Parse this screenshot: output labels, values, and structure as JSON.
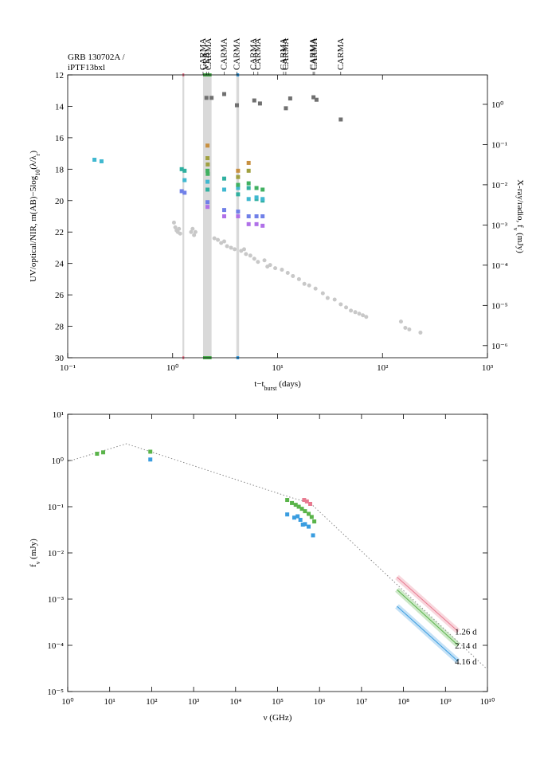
{
  "chart_data": [
    {
      "type": "scatter",
      "title": [
        "GRB 130702A /",
        "iPTF13bxl"
      ],
      "xlabel": [
        {
          "text": "t−t"
        },
        {
          "text": "burst",
          "sub": true
        },
        {
          "text": " (days)"
        }
      ],
      "ylabel": [
        {
          "text": "UV/optical/NIR, m(AB)−5log"
        },
        {
          "text": "10",
          "sub": true
        },
        {
          "text": "(λ/λ"
        },
        {
          "text": "r",
          "sub": true
        },
        {
          "text": ")"
        }
      ],
      "y2label": [
        {
          "text": "X-ray/radio, f"
        },
        {
          "text": "ν",
          "sub": true
        },
        {
          "text": " (mJy)"
        }
      ],
      "xscale": "log",
      "yscale": "linear",
      "y2scale": "log",
      "xlim": [
        0.1,
        1000
      ],
      "ylim": [
        30,
        12
      ],
      "y2lim": [
        5e-07,
        5.4
      ],
      "xticks": [
        {
          "value": 0.1,
          "label": "10⁻¹"
        },
        {
          "value": 1,
          "label": "10⁰"
        },
        {
          "value": 10,
          "label": "10¹"
        },
        {
          "value": 100,
          "label": "10²"
        },
        {
          "value": 1000,
          "label": "10³"
        }
      ],
      "yticks": [
        12,
        14,
        16,
        18,
        20,
        22,
        24,
        26,
        28,
        30
      ],
      "y2ticks": [
        {
          "value": 1e-06,
          "label": "10⁻⁶"
        },
        {
          "value": 1e-05,
          "label": "10⁻⁵"
        },
        {
          "value": 0.0001,
          "label": "10⁻⁴"
        },
        {
          "value": 0.001,
          "label": "10⁻³"
        },
        {
          "value": 0.01,
          "label": "10⁻²"
        },
        {
          "value": 0.1,
          "label": "10⁻¹"
        },
        {
          "value": 1,
          "label": "10⁰"
        }
      ],
      "bands": [
        {
          "x": [
            1.24,
            1.29
          ],
          "color": "#e87a90"
        },
        {
          "x": [
            1.95,
            2.35
          ],
          "color": "#4caf50"
        },
        {
          "x": [
            4.05,
            4.3
          ],
          "color": "#3a9de0"
        }
      ],
      "annotations": [
        {
          "text": "CARMA",
          "x": 1.95
        },
        {
          "text": "VLA",
          "x": 2.1
        },
        {
          "text": "CARMA",
          "x": 2.2
        },
        {
          "text": "CARMA",
          "x": 3.1
        },
        {
          "text": "CARMA",
          "x": 4.1
        },
        {
          "text": "CARMA",
          "x": 5.9
        },
        {
          "text": "CARMA",
          "x": 6.5
        },
        {
          "text": "CARMA",
          "x": 11.4
        },
        {
          "text": "CARMA",
          "x": 12
        },
        {
          "text": "CARMA",
          "x": 21.8
        },
        {
          "text": "CARMA",
          "x": 22.5
        },
        {
          "text": "CARMA",
          "x": 40
        }
      ],
      "series": [
        {
          "color": "#c8c8c8",
          "marker": "circle",
          "x": [
            1.03,
            1.06,
            1.09,
            1.12,
            1.15,
            1.18,
            1.5,
            1.55,
            1.6,
            1.65,
            2.5,
            2.7,
            2.9,
            3.1,
            3.3,
            3.6,
            3.9,
            4.5,
            4.8,
            5.0,
            5.5,
            6.0,
            6.5,
            7.5,
            8.0,
            8.5,
            9.5,
            11,
            12.5,
            14,
            16,
            18,
            20,
            23,
            27,
            30,
            35,
            40,
            45,
            50,
            55,
            60,
            65,
            70,
            150,
            165,
            180,
            230
          ],
          "values": [
            21.4,
            21.7,
            21.9,
            22.0,
            21.8,
            22.1,
            22.0,
            21.8,
            22.2,
            22.0,
            22.4,
            22.5,
            22.7,
            22.6,
            22.9,
            23.0,
            23.1,
            23.2,
            23.1,
            23.4,
            23.5,
            23.7,
            23.9,
            23.8,
            24.2,
            24.1,
            24.3,
            24.4,
            24.6,
            24.8,
            25.0,
            25.3,
            25.4,
            25.6,
            25.9,
            26.2,
            26.3,
            26.6,
            26.8,
            27.0,
            27.1,
            27.2,
            27.3,
            27.4,
            27.7,
            28.1,
            28.2,
            28.4
          ]
        },
        {
          "color": "#30b0a0",
          "marker": "square",
          "x": [
            1.22,
            1.3,
            2.15,
            3.1,
            4.2,
            5.3,
            6.3,
            7.2
          ],
          "values": [
            18.0,
            18.1,
            19.3,
            18.6,
            19.6,
            19.2,
            19.9,
            20.0
          ]
        },
        {
          "color": "#40b8d0",
          "marker": "square",
          "x": [
            0.18,
            0.21,
            1.3,
            2.15,
            3.1,
            4.2,
            5.3,
            6.3,
            7.2
          ],
          "values": [
            17.4,
            17.5,
            18.7,
            18.8,
            19.3,
            19.2,
            19.9,
            19.8,
            19.9
          ]
        },
        {
          "color": "#40b060",
          "marker": "square",
          "x": [
            2.15,
            2.16,
            4.2,
            5.3,
            6.3,
            7.2
          ],
          "values": [
            18.1,
            18.3,
            19.0,
            18.9,
            19.2,
            19.3
          ]
        },
        {
          "color": "#a0a040",
          "marker": "square",
          "x": [
            2.15,
            2.16,
            4.2,
            5.3
          ],
          "values": [
            17.3,
            17.7,
            18.5,
            18.1
          ]
        },
        {
          "color": "#c89040",
          "marker": "square",
          "x": [
            2.15,
            4.2,
            5.3
          ],
          "values": [
            16.5,
            18.1,
            17.6
          ]
        },
        {
          "color": "#7080e8",
          "marker": "square",
          "x": [
            1.22,
            1.3,
            2.15,
            3.1,
            4.2,
            5.3,
            6.3,
            7.2
          ],
          "values": [
            19.4,
            19.5,
            20.1,
            20.6,
            20.7,
            21.0,
            21.0,
            21.0
          ]
        },
        {
          "color": "#b070e8",
          "marker": "square",
          "x": [
            2.15,
            3.1,
            4.2,
            5.3,
            6.3,
            7.2
          ],
          "values": [
            20.4,
            21.0,
            21.0,
            21.5,
            21.5,
            21.6
          ]
        },
        {
          "color": "#707070",
          "marker": "square",
          "axis": "y2",
          "x": [
            2.1,
            2.35,
            3.1,
            4.1,
            6.0,
            6.8,
            12,
            13.2,
            22,
            23.5,
            40
          ],
          "values": [
            1.45,
            1.45,
            1.8,
            0.95,
            1.25,
            1.05,
            0.8,
            1.4,
            1.5,
            1.3,
            0.42
          ]
        }
      ]
    },
    {
      "type": "scatter",
      "xlabel": [
        {
          "text": "ν (GHz)"
        }
      ],
      "ylabel": [
        {
          "text": "f"
        },
        {
          "text": "ν",
          "sub": true
        },
        {
          "text": " (mJy)"
        }
      ],
      "xscale": "log",
      "yscale": "log",
      "xlim": [
        1,
        10000000000
      ],
      "ylim": [
        1e-05,
        10
      ],
      "xticks": [
        {
          "value": 1,
          "label": "10⁰"
        },
        {
          "value": 10,
          "label": "10¹"
        },
        {
          "value": 100,
          "label": "10²"
        },
        {
          "value": 1000,
          "label": "10³"
        },
        {
          "value": 10000,
          "label": "10⁴"
        },
        {
          "value": 100000,
          "label": "10⁵"
        },
        {
          "value": 1000000,
          "label": "10⁶"
        },
        {
          "value": 10000000,
          "label": "10⁷"
        },
        {
          "value": 100000000,
          "label": "10⁸"
        },
        {
          "value": 1000000000,
          "label": "10⁹"
        },
        {
          "value": 10000000000,
          "label": "10¹⁰"
        }
      ],
      "yticks": [
        {
          "value": 1e-05,
          "label": "10⁻⁵"
        },
        {
          "value": 0.0001,
          "label": "10⁻⁴"
        },
        {
          "value": 0.001,
          "label": "10⁻³"
        },
        {
          "value": 0.01,
          "label": "10⁻²"
        },
        {
          "value": 0.1,
          "label": "10⁻¹"
        },
        {
          "value": 1,
          "label": "10⁰"
        },
        {
          "value": 10,
          "label": "10¹"
        }
      ],
      "series": [
        {
          "color": "#888888",
          "style": "dotted",
          "x": [
            1,
            25,
            200000,
            600000,
            10000000000
          ],
          "values": [
            0.95,
            2.3,
            0.16,
            0.12,
            3e-05
          ]
        },
        {
          "color": "#5ab44a",
          "marker": "square",
          "x": [
            5,
            7,
            93,
            170000,
            220000,
            270000,
            320000,
            380000,
            450000,
            550000,
            650000,
            750000
          ],
          "values": [
            1.4,
            1.5,
            1.55,
            0.14,
            0.12,
            0.11,
            0.1,
            0.09,
            0.08,
            0.07,
            0.06,
            0.048
          ]
        },
        {
          "color": "#3a9de0",
          "marker": "square",
          "x": [
            93,
            170000,
            250000,
            300000,
            350000,
            400000,
            450000,
            550000,
            700000
          ],
          "values": [
            1.05,
            0.068,
            0.058,
            0.062,
            0.052,
            0.041,
            0.042,
            0.037,
            0.024
          ]
        },
        {
          "color": "#e87a90",
          "marker": "square",
          "x": [
            430000,
            500000,
            600000
          ],
          "values": [
            0.14,
            0.13,
            0.115
          ]
        },
        {
          "color": "#e87a90",
          "style": "band",
          "label": "1.26 d",
          "x": [
            70000000,
            2000000000
          ],
          "values": [
            0.003,
            0.0002
          ]
        },
        {
          "color": "#5ab44a",
          "style": "band",
          "label": "2.14 d",
          "x": [
            70000000,
            2000000000
          ],
          "values": [
            0.0016,
            0.0001
          ]
        },
        {
          "color": "#3a9de0",
          "style": "band",
          "label": "4.16 d",
          "x": [
            70000000,
            2000000000
          ],
          "values": [
            0.0007,
            4.5e-05
          ]
        }
      ]
    }
  ]
}
